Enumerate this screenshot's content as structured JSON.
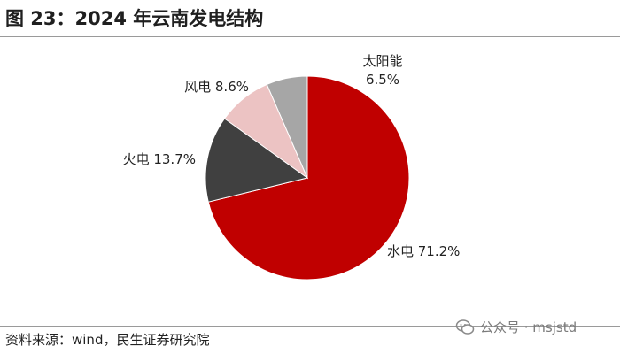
{
  "title": "图 23：2024 年云南发电结构",
  "source": "资料来源：wind，民生证券研究院",
  "watermark": {
    "icon": "wechat-icon",
    "text": "公众号 · msjstd"
  },
  "colors": {
    "水电": "#c00000",
    "火电": "#404040",
    "风电": "#ecc3c3",
    "太阳能": "#a6a6a6"
  },
  "chart_data": {
    "type": "pie",
    "title": "图 23：2024 年云南发电结构",
    "start_angle_deg": 0,
    "direction": "clockwise",
    "slices": [
      {
        "label": "水电",
        "value": 71.2,
        "value_text": "71.2%"
      },
      {
        "label": "火电",
        "value": 13.7,
        "value_text": "13.7%"
      },
      {
        "label": "风电",
        "value": 8.6,
        "value_text": "8.6%"
      },
      {
        "label": "太阳能",
        "value": 6.5,
        "value_text": "6.5%"
      }
    ]
  }
}
